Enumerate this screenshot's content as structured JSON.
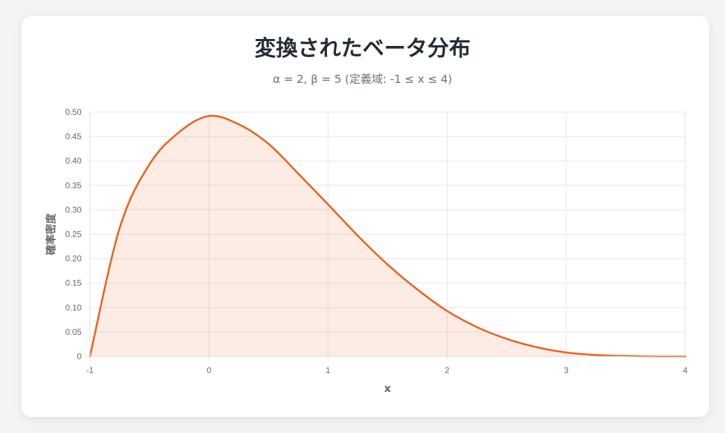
{
  "title": "変換されたベータ分布",
  "subtitle": "α = 2, β = 5 (定義域: -1 ≤ x ≤ 4)",
  "colors": {
    "line": "#e8601c",
    "fill": "rgba(232,96,28,0.12)",
    "grid": "#e5e5e5",
    "background": "#f3f4f6",
    "card": "#ffffff"
  },
  "chart_data": {
    "type": "area",
    "title": "変換されたベータ分布",
    "subtitle": "α = 2, β = 5 (定義域: -1 ≤ x ≤ 4)",
    "xlabel": "x",
    "ylabel": "確率密度",
    "xlim": [
      -1,
      4
    ],
    "ylim": [
      0,
      0.5
    ],
    "grid": true,
    "x_ticks": [
      -1,
      0,
      1,
      2,
      3,
      4
    ],
    "x_tick_labels": [
      "-1",
      "0",
      "1",
      "2",
      "3",
      "4"
    ],
    "y_ticks": [
      0,
      0.05,
      0.1,
      0.15,
      0.2,
      0.25,
      0.3,
      0.35,
      0.4,
      0.45,
      0.5
    ],
    "y_tick_labels": [
      "0",
      "0.05",
      "0.10",
      "0.15",
      "0.20",
      "0.25",
      "0.30",
      "0.35",
      "0.40",
      "0.45",
      "0.50"
    ],
    "series": [
      {
        "x": [
          -1,
          -0.75,
          -0.5,
          -0.25,
          0,
          0.25,
          0.5,
          0.75,
          1,
          1.25,
          1.5,
          1.75,
          2,
          2.25,
          2.5,
          2.75,
          3,
          3.25,
          3.5,
          3.75,
          4
        ],
        "values": [
          0,
          0.263,
          0.393,
          0.459,
          0.492,
          0.475,
          0.435,
          0.374,
          0.311,
          0.247,
          0.188,
          0.137,
          0.093,
          0.06,
          0.036,
          0.019,
          0.008,
          0.003,
          0.001,
          0.0,
          0
        ]
      }
    ]
  }
}
